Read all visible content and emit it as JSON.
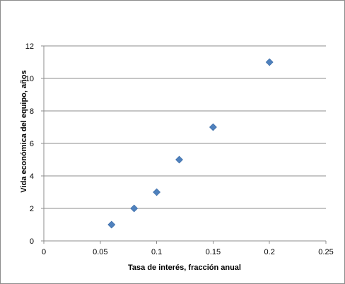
{
  "chart_data": {
    "type": "scatter",
    "title": "",
    "xlabel": "Tasa de interés, fracción anual",
    "ylabel": "Vida económica del equipo, años",
    "xlim": [
      0,
      0.25
    ],
    "ylim": [
      0,
      12
    ],
    "xticks": [
      0,
      0.05,
      0.1,
      0.15,
      0.2,
      0.25
    ],
    "xtick_labels": [
      "0",
      "0.05",
      "0.1",
      "0.15",
      "0.2",
      "0.25"
    ],
    "yticks": [
      0,
      2,
      4,
      6,
      8,
      10,
      12
    ],
    "ytick_labels": [
      "0",
      "2",
      "4",
      "6",
      "8",
      "10",
      "12"
    ],
    "grid": "horizontal",
    "legend": "none",
    "marker": "diamond",
    "marker_color": "#4f81bd",
    "series": [
      {
        "x": [
          0.06,
          0.08,
          0.1,
          0.12,
          0.15,
          0.2
        ],
        "y": [
          1,
          2,
          3,
          5,
          7,
          11
        ]
      }
    ]
  }
}
